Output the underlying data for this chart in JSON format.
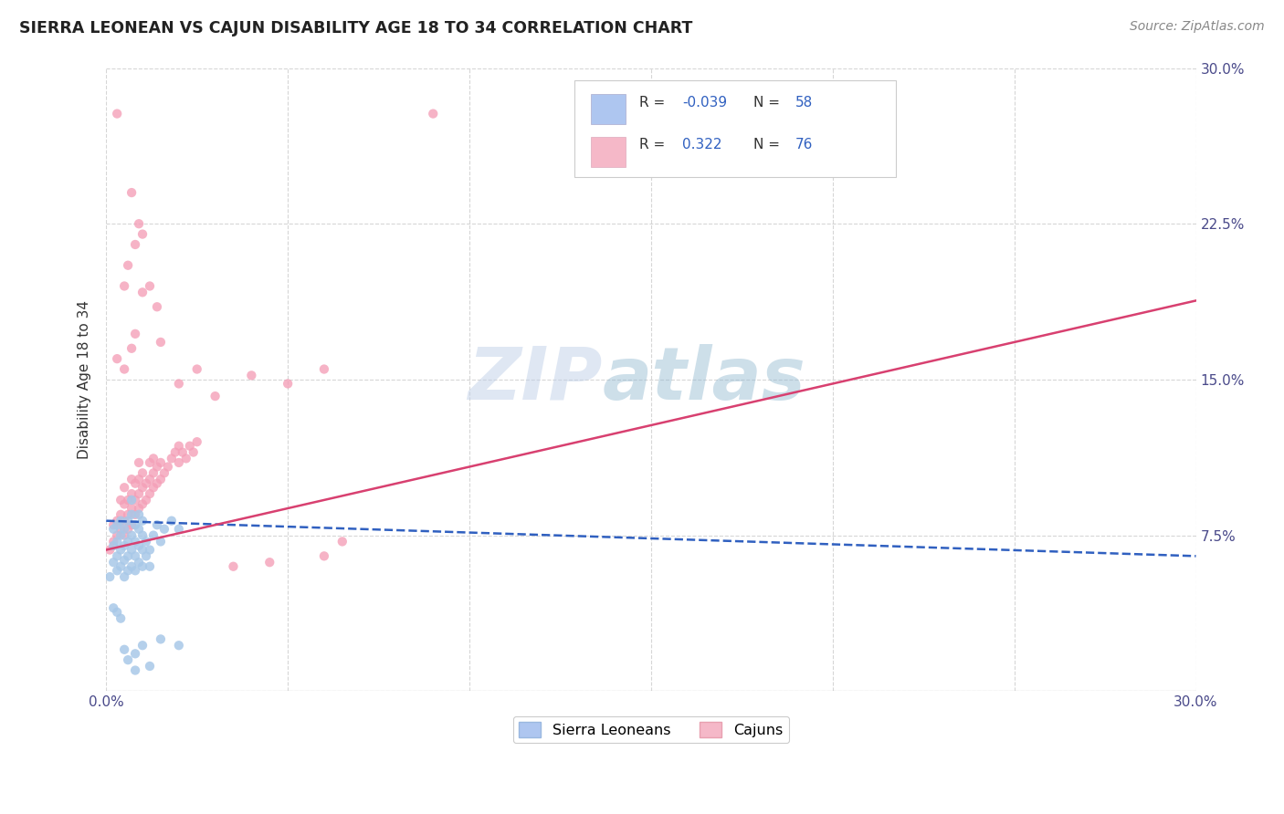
{
  "title": "SIERRA LEONEAN VS CAJUN DISABILITY AGE 18 TO 34 CORRELATION CHART",
  "source": "Source: ZipAtlas.com",
  "ylabel": "Disability Age 18 to 34",
  "xlim": [
    0.0,
    0.3
  ],
  "ylim": [
    0.0,
    0.3
  ],
  "xticks": [
    0.0,
    0.05,
    0.1,
    0.15,
    0.2,
    0.25,
    0.3
  ],
  "yticks": [
    0.0,
    0.075,
    0.15,
    0.225,
    0.3
  ],
  "xticklabels": [
    "0.0%",
    "",
    "",
    "",
    "",
    "",
    "30.0%"
  ],
  "yticklabels_right": [
    "",
    "7.5%",
    "15.0%",
    "22.5%",
    "30.0%"
  ],
  "sierra_color": "#a8c8e8",
  "cajun_color": "#f4a0b8",
  "sierra_line_color": "#3060c0",
  "cajun_line_color": "#d84070",
  "watermark_zip": "ZIP",
  "watermark_atlas": "atlas",
  "background_color": "#ffffff",
  "grid_color": "#cccccc",
  "sierra_R": -0.039,
  "cajun_R": 0.322,
  "sierra_N": 58,
  "cajun_N": 76,
  "legend_box_color": "#aec6f0",
  "legend_box_color2": "#f5b8c8",
  "legend_text_color": "#3060c0",
  "legend_label_color": "#444444",
  "sierra_line_y0": 0.082,
  "sierra_line_y1": 0.065,
  "cajun_line_y0": 0.068,
  "cajun_line_y1": 0.188,
  "sierra_scatter": [
    [
      0.001,
      0.055
    ],
    [
      0.002,
      0.062
    ],
    [
      0.002,
      0.07
    ],
    [
      0.002,
      0.078
    ],
    [
      0.003,
      0.058
    ],
    [
      0.003,
      0.065
    ],
    [
      0.003,
      0.072
    ],
    [
      0.003,
      0.08
    ],
    [
      0.004,
      0.06
    ],
    [
      0.004,
      0.068
    ],
    [
      0.004,
      0.075
    ],
    [
      0.004,
      0.082
    ],
    [
      0.005,
      0.055
    ],
    [
      0.005,
      0.063
    ],
    [
      0.005,
      0.07
    ],
    [
      0.005,
      0.078
    ],
    [
      0.006,
      0.058
    ],
    [
      0.006,
      0.065
    ],
    [
      0.006,
      0.072
    ],
    [
      0.006,
      0.082
    ],
    [
      0.007,
      0.06
    ],
    [
      0.007,
      0.068
    ],
    [
      0.007,
      0.075
    ],
    [
      0.007,
      0.085
    ],
    [
      0.007,
      0.092
    ],
    [
      0.008,
      0.058
    ],
    [
      0.008,
      0.065
    ],
    [
      0.008,
      0.072
    ],
    [
      0.008,
      0.08
    ],
    [
      0.009,
      0.062
    ],
    [
      0.009,
      0.07
    ],
    [
      0.009,
      0.078
    ],
    [
      0.009,
      0.085
    ],
    [
      0.01,
      0.06
    ],
    [
      0.01,
      0.068
    ],
    [
      0.01,
      0.075
    ],
    [
      0.01,
      0.082
    ],
    [
      0.011,
      0.065
    ],
    [
      0.011,
      0.072
    ],
    [
      0.012,
      0.06
    ],
    [
      0.012,
      0.068
    ],
    [
      0.013,
      0.075
    ],
    [
      0.014,
      0.08
    ],
    [
      0.015,
      0.072
    ],
    [
      0.016,
      0.078
    ],
    [
      0.018,
      0.082
    ],
    [
      0.02,
      0.078
    ],
    [
      0.002,
      0.04
    ],
    [
      0.003,
      0.038
    ],
    [
      0.004,
      0.035
    ],
    [
      0.005,
      0.02
    ],
    [
      0.006,
      0.015
    ],
    [
      0.008,
      0.018
    ],
    [
      0.01,
      0.022
    ],
    [
      0.015,
      0.025
    ],
    [
      0.02,
      0.022
    ],
    [
      0.008,
      0.01
    ],
    [
      0.012,
      0.012
    ]
  ],
  "cajun_scatter": [
    [
      0.001,
      0.068
    ],
    [
      0.002,
      0.072
    ],
    [
      0.002,
      0.08
    ],
    [
      0.003,
      0.075
    ],
    [
      0.003,
      0.082
    ],
    [
      0.004,
      0.078
    ],
    [
      0.004,
      0.085
    ],
    [
      0.004,
      0.092
    ],
    [
      0.005,
      0.075
    ],
    [
      0.005,
      0.082
    ],
    [
      0.005,
      0.09
    ],
    [
      0.005,
      0.098
    ],
    [
      0.006,
      0.078
    ],
    [
      0.006,
      0.085
    ],
    [
      0.006,
      0.092
    ],
    [
      0.007,
      0.08
    ],
    [
      0.007,
      0.088
    ],
    [
      0.007,
      0.095
    ],
    [
      0.007,
      0.102
    ],
    [
      0.008,
      0.085
    ],
    [
      0.008,
      0.092
    ],
    [
      0.008,
      0.1
    ],
    [
      0.009,
      0.088
    ],
    [
      0.009,
      0.095
    ],
    [
      0.009,
      0.102
    ],
    [
      0.009,
      0.11
    ],
    [
      0.01,
      0.09
    ],
    [
      0.01,
      0.098
    ],
    [
      0.01,
      0.105
    ],
    [
      0.011,
      0.092
    ],
    [
      0.011,
      0.1
    ],
    [
      0.012,
      0.095
    ],
    [
      0.012,
      0.102
    ],
    [
      0.012,
      0.11
    ],
    [
      0.013,
      0.098
    ],
    [
      0.013,
      0.105
    ],
    [
      0.013,
      0.112
    ],
    [
      0.014,
      0.1
    ],
    [
      0.014,
      0.108
    ],
    [
      0.015,
      0.102
    ],
    [
      0.015,
      0.11
    ],
    [
      0.016,
      0.105
    ],
    [
      0.017,
      0.108
    ],
    [
      0.018,
      0.112
    ],
    [
      0.019,
      0.115
    ],
    [
      0.02,
      0.11
    ],
    [
      0.02,
      0.118
    ],
    [
      0.021,
      0.115
    ],
    [
      0.022,
      0.112
    ],
    [
      0.023,
      0.118
    ],
    [
      0.024,
      0.115
    ],
    [
      0.025,
      0.12
    ],
    [
      0.003,
      0.16
    ],
    [
      0.005,
      0.155
    ],
    [
      0.007,
      0.165
    ],
    [
      0.008,
      0.172
    ],
    [
      0.01,
      0.192
    ],
    [
      0.012,
      0.195
    ],
    [
      0.014,
      0.185
    ],
    [
      0.015,
      0.168
    ],
    [
      0.005,
      0.195
    ],
    [
      0.006,
      0.205
    ],
    [
      0.008,
      0.215
    ],
    [
      0.009,
      0.225
    ],
    [
      0.007,
      0.24
    ],
    [
      0.01,
      0.22
    ],
    [
      0.003,
      0.278
    ],
    [
      0.02,
      0.148
    ],
    [
      0.025,
      0.155
    ],
    [
      0.03,
      0.142
    ],
    [
      0.04,
      0.152
    ],
    [
      0.05,
      0.148
    ],
    [
      0.06,
      0.155
    ],
    [
      0.09,
      0.278
    ],
    [
      0.06,
      0.065
    ],
    [
      0.065,
      0.072
    ],
    [
      0.045,
      0.062
    ],
    [
      0.035,
      0.06
    ]
  ]
}
